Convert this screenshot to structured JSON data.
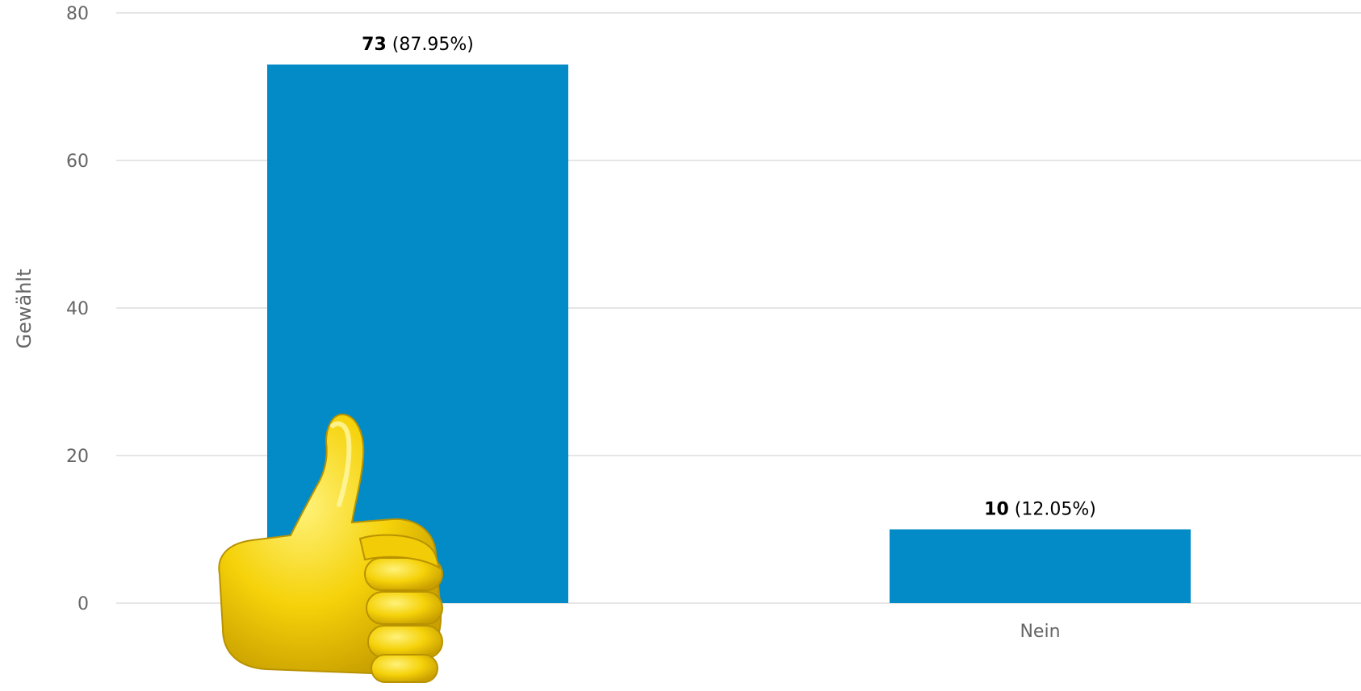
{
  "chart_data": {
    "type": "bar",
    "categories": [
      "Ja",
      "Nein"
    ],
    "values": [
      73,
      10
    ],
    "percentages": [
      "(87.95%)",
      "(12.05%)"
    ],
    "title": "",
    "xlabel": "",
    "ylabel": "Gewählt",
    "ylim": [
      0,
      80
    ],
    "yticks": [
      0,
      20,
      40,
      60,
      80
    ],
    "grid": true,
    "legend": "none",
    "bar_color": "#028bc7",
    "grid_color": "#e6e6e6",
    "label_color": "#666666"
  },
  "overlay": {
    "icon": "thumbs-up-icon",
    "color": "#f5d20a"
  }
}
